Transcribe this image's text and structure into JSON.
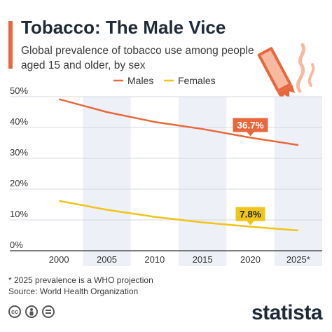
{
  "title": "Tobacco: The Male Vice",
  "subtitle": "Global prevalence of tobacco use among people aged 15 and older, by sex",
  "footnote": "* 2025 prevalence is a WHO projection",
  "source": "Source: World Health Organization",
  "brand": "statista",
  "license_icons": [
    "cc-icon",
    "person-icon",
    "equals-icon"
  ],
  "colors": {
    "males": "#e8683d",
    "females": "#f0c419",
    "band": "#edf0f6",
    "grid": "#d5d9e0",
    "text": "#333333"
  },
  "chart_data": {
    "type": "line",
    "x": [
      2000,
      2005,
      2010,
      2015,
      2020,
      2025
    ],
    "tick_labels": [
      "2000",
      "2005",
      "2010",
      "2015",
      "2020",
      "2025*"
    ],
    "ylim": [
      0,
      50
    ],
    "yticks": [
      "0%",
      "10%",
      "20%",
      "30%",
      "40%",
      "50%"
    ],
    "legend_position": "top",
    "series": [
      {
        "name": "Males",
        "values": [
          49.2,
          45.0,
          41.8,
          39.5,
          36.7,
          34.3
        ]
      },
      {
        "name": "Females",
        "values": [
          16.2,
          13.3,
          11.0,
          9.2,
          7.8,
          6.6
        ]
      }
    ],
    "annotations": [
      {
        "series": "Males",
        "label": "36.7%",
        "x": 2020
      },
      {
        "series": "Females",
        "label": "7.8%",
        "x": 2020
      }
    ]
  }
}
